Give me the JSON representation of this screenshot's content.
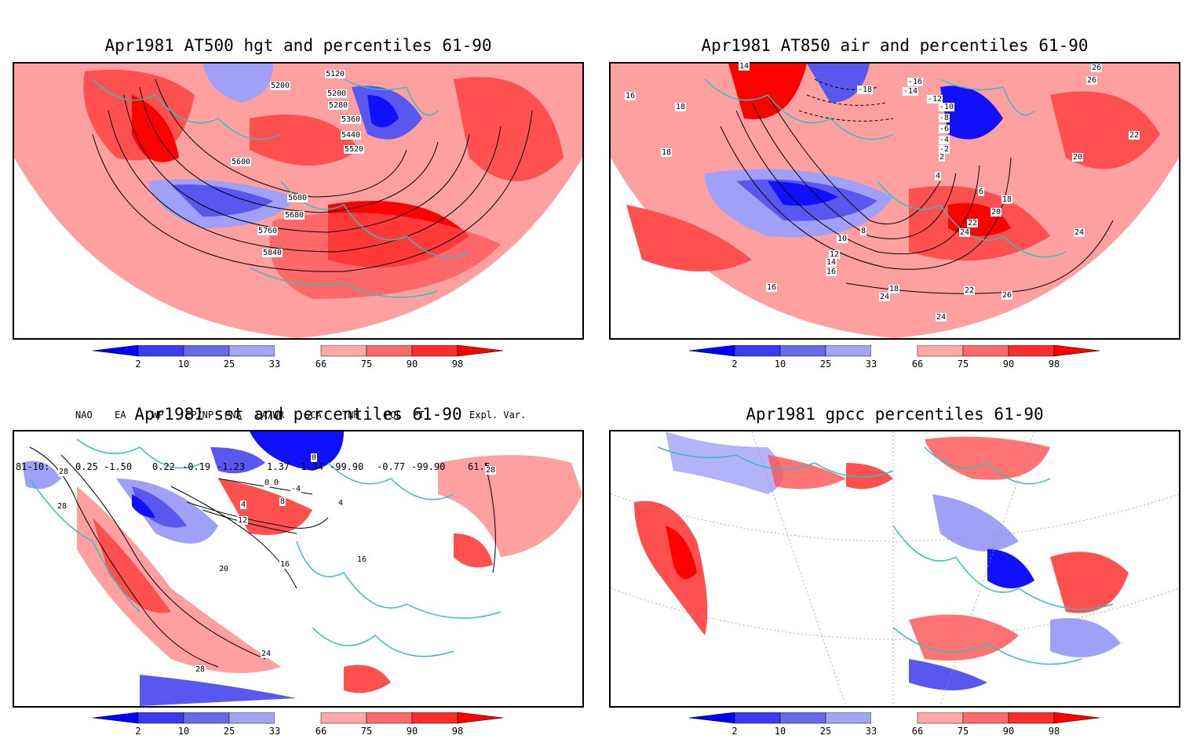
{
  "panels": [
    {
      "title": "Apr1981 AT500 hgt and percentiles 61-90",
      "contour_labels": [
        "5120",
        "5200",
        "5200",
        "5280",
        "5360",
        "5440",
        "5520",
        "5600",
        "5600",
        "5680",
        "5760",
        "5840"
      ]
    },
    {
      "title": "Apr1981 AT850 air and percentiles 61-90",
      "contour_labels": [
        "14",
        "16",
        "18",
        "18",
        "-18",
        "-16",
        "-14",
        "-12",
        "-10",
        "-8",
        "-6",
        "-4",
        "-2",
        "2",
        "4",
        "6",
        "8",
        "10",
        "12",
        "14",
        "16",
        "18",
        "20",
        "22",
        "24",
        "24",
        "26",
        "26",
        "20",
        "22",
        "24",
        "16",
        "18",
        "24",
        "26",
        "22",
        "18"
      ]
    },
    {
      "title": "Apr1981 sst and percentiles 61-90",
      "contour_labels": [
        "28",
        "28",
        "0",
        "0",
        "0",
        "-4",
        "4",
        "8",
        "12",
        "16",
        "16",
        "20",
        "24",
        "28",
        "28",
        "4"
      ]
    },
    {
      "title": "Apr1981 gpcc percentiles 61-90",
      "contour_labels": []
    }
  ],
  "colorbar": {
    "labels": [
      "2",
      "10",
      "25",
      "33",
      "66",
      "75",
      "90",
      "98"
    ],
    "colors": [
      "#0000ff",
      "#3a3af0",
      "#6a6ae6",
      "#a4a4f5",
      "#ffffff",
      "#ffa8a8",
      "#ff6a6a",
      "#ff2d2d",
      "#ff0000"
    ]
  },
  "indices": {
    "headers": [
      "NAO",
      "EA",
      "WP",
      "EP/NP",
      "PNA",
      "EA/WR",
      "SCA",
      "TNH",
      "POL",
      "PT",
      "Expl. Var."
    ],
    "row_label": "81-10:",
    "values": [
      "0.25",
      "-1.50",
      "0.22",
      "-0.19",
      "-1.23",
      "1.37",
      "-1.34",
      "-99.90",
      "-0.77",
      "-99.90",
      "61.5"
    ]
  },
  "colors": {
    "coast": "#30c0c0",
    "red_strong": "#ff0000",
    "red_mid": "#ff5050",
    "red_light": "#ffa0a0",
    "blue_strong": "#1010ff",
    "blue_mid": "#5858f0",
    "blue_light": "#a0a0f8"
  }
}
